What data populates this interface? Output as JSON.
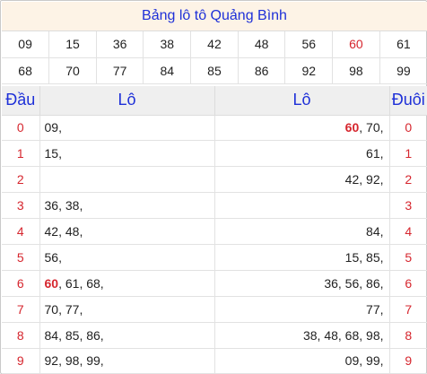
{
  "title": "Bảng lô tô Quảng Bình",
  "numbers": [
    [
      "09",
      "15",
      "36",
      "38",
      "42",
      "48",
      "56",
      "60",
      "61"
    ],
    [
      "68",
      "70",
      "77",
      "84",
      "85",
      "86",
      "92",
      "98",
      "99"
    ]
  ],
  "highlight_number": "60",
  "headers": {
    "dau": "Đầu",
    "lo_left": "Lô",
    "lo_right": "Lô",
    "duoi": "Đuôi"
  },
  "rows": [
    {
      "dau": "0",
      "left": [
        "09"
      ],
      "right": [
        "60",
        "70"
      ],
      "duoi": "0"
    },
    {
      "dau": "1",
      "left": [
        "15"
      ],
      "right": [
        "61"
      ],
      "duoi": "1"
    },
    {
      "dau": "2",
      "left": [],
      "right": [
        "42",
        "92"
      ],
      "duoi": "2"
    },
    {
      "dau": "3",
      "left": [
        "36",
        "38"
      ],
      "right": [],
      "duoi": "3"
    },
    {
      "dau": "4",
      "left": [
        "42",
        "48"
      ],
      "right": [
        "84"
      ],
      "duoi": "4"
    },
    {
      "dau": "5",
      "left": [
        "56"
      ],
      "right": [
        "15",
        "85"
      ],
      "duoi": "5"
    },
    {
      "dau": "6",
      "left": [
        "60",
        "61",
        "68"
      ],
      "right": [
        "36",
        "56",
        "86"
      ],
      "duoi": "6"
    },
    {
      "dau": "7",
      "left": [
        "70",
        "77"
      ],
      "right": [
        "77"
      ],
      "duoi": "7"
    },
    {
      "dau": "8",
      "left": [
        "84",
        "85",
        "86"
      ],
      "right": [
        "38",
        "48",
        "68",
        "98"
      ],
      "duoi": "8"
    },
    {
      "dau": "9",
      "left": [
        "92",
        "98",
        "99"
      ],
      "right": [
        "09",
        "99"
      ],
      "duoi": "9"
    }
  ]
}
